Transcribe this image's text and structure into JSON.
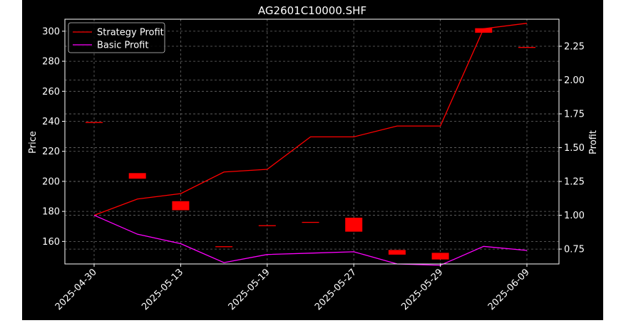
{
  "chart_data": {
    "type": "line",
    "title": "AG2601C10000.SHF",
    "ylabel_left": "Price",
    "ylabel_right": "Profit",
    "x_ticks": [
      "2025-04-30",
      "2025-05-13",
      "2025-05-19",
      "2025-05-27",
      "2025-05-29",
      "2025-06-09"
    ],
    "y_left_ticks": [
      160,
      180,
      200,
      220,
      240,
      260,
      280,
      300
    ],
    "y_right_ticks": [
      "0.75",
      "1.00",
      "1.25",
      "1.50",
      "1.75",
      "2.00",
      "2.25"
    ],
    "y_left_range": [
      145,
      308
    ],
    "y_right_range": [
      0.64,
      2.45
    ],
    "grid": true,
    "legend_position": "top-left",
    "series": [
      {
        "name": "Strategy Profit",
        "color": "#ff0000",
        "axis": "right",
        "values": [
          1.0,
          1.12,
          1.16,
          1.32,
          1.34,
          1.58,
          1.58,
          1.66,
          1.66,
          2.38,
          2.42
        ]
      },
      {
        "name": "Basic Profit",
        "color": "#ff00ff",
        "axis": "right",
        "values": [
          1.0,
          0.86,
          0.79,
          0.65,
          0.71,
          0.72,
          0.73,
          0.64,
          0.63,
          0.77,
          0.74
        ]
      }
    ],
    "candles": {
      "color": "#ff0000",
      "axis": "left",
      "items": [
        {
          "open": 239.5,
          "close": 239.5
        },
        {
          "open": 205.5,
          "close": 201.8
        },
        {
          "open": 186.8,
          "close": 180.8
        },
        {
          "open": 156.8,
          "close": 156.8
        },
        {
          "open": 170.8,
          "close": 170.8
        },
        {
          "open": 173.0,
          "close": 173.0
        },
        {
          "open": 175.8,
          "close": 166.5
        },
        {
          "open": 154.3,
          "close": 151.2
        },
        {
          "open": 152.4,
          "close": 148.0
        },
        {
          "open": 302.0,
          "close": 299.0
        },
        {
          "open": 289.5,
          "close": 289.5
        }
      ]
    }
  }
}
